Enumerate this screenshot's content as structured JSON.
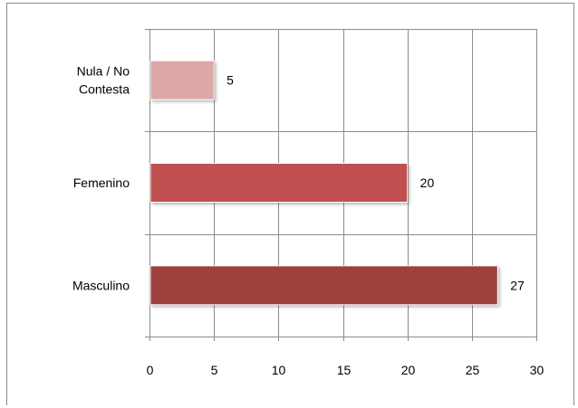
{
  "chart_data": {
    "type": "bar",
    "orientation": "horizontal",
    "title": "",
    "xlabel": "",
    "ylabel": "",
    "categories": [
      "Nula / No Contesta",
      "Femenino",
      "Masculino"
    ],
    "category_lines": [
      [
        "Nula / No",
        "Contesta"
      ],
      [
        "Femenino"
      ],
      [
        "Masculino"
      ]
    ],
    "values": [
      5,
      20,
      27
    ],
    "bar_colors": [
      "#dba7a7",
      "#c0504f",
      "#9f3f3d"
    ],
    "xlim": [
      0,
      30
    ],
    "xticks": [
      "0",
      "5",
      "10",
      "15",
      "20",
      "25",
      "30"
    ],
    "grid": true,
    "data_labels": true,
    "legend": "none"
  },
  "colors": {
    "gridline": "#8c8c8c",
    "frame_border": "#8a8a8a"
  }
}
